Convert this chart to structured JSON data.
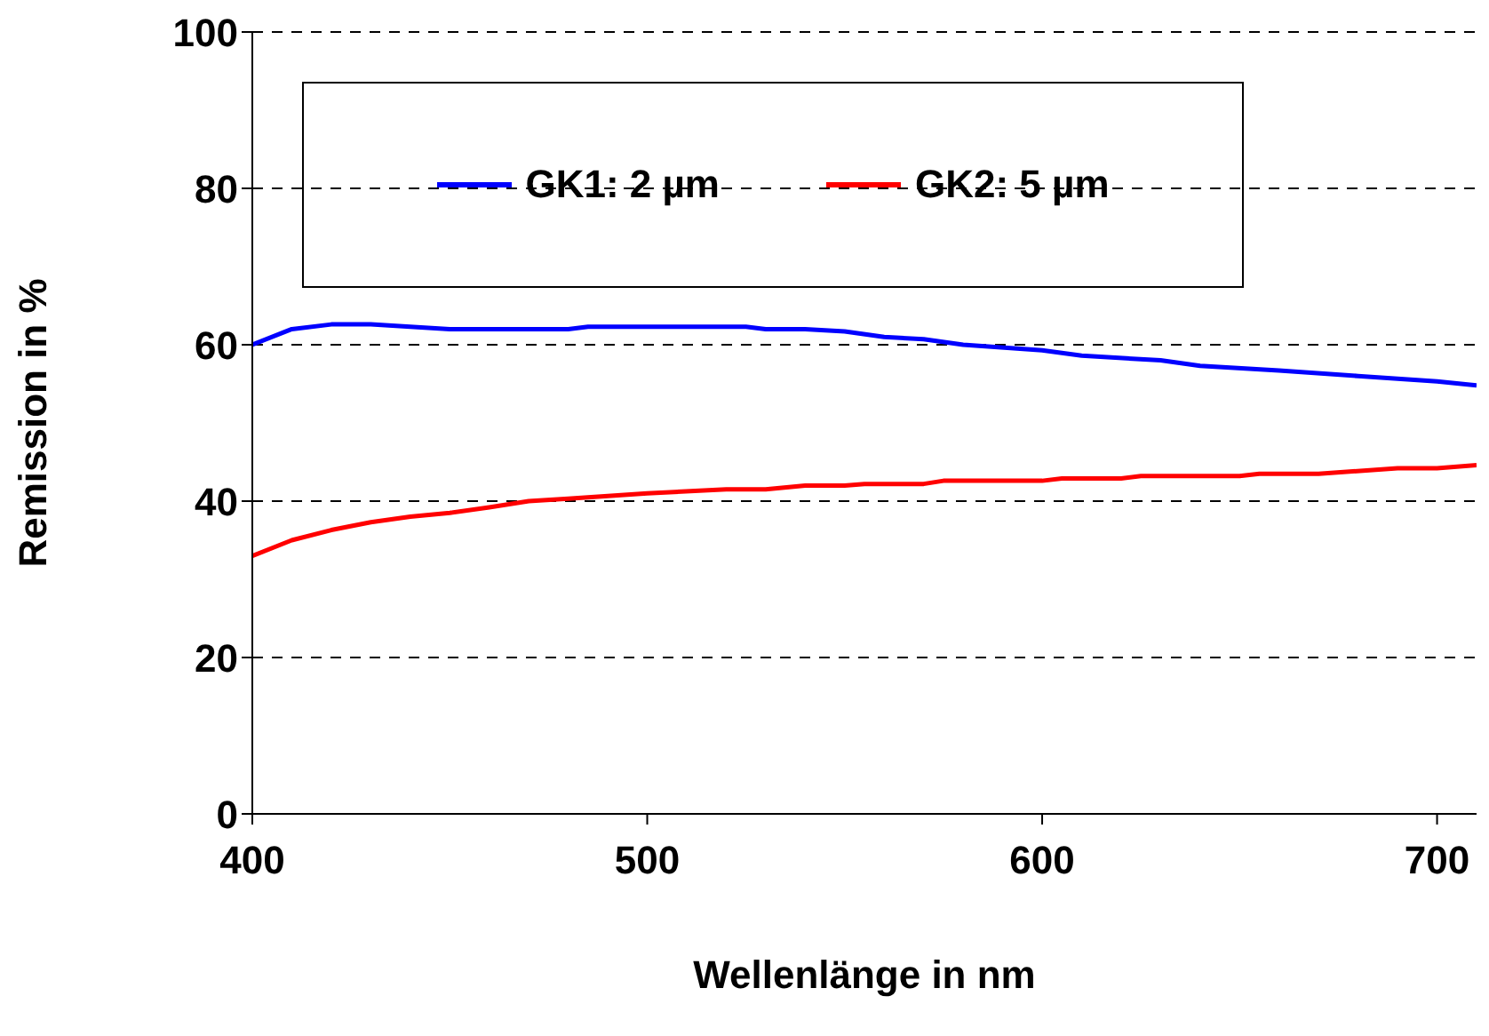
{
  "chart_data": {
    "type": "line",
    "xlabel": "Wellenlänge in nm",
    "ylabel": "Remission in %",
    "xlim": [
      400,
      710
    ],
    "xticks": [
      400,
      500,
      600,
      700
    ],
    "ylim": [
      0,
      100
    ],
    "yticks": [
      0,
      20,
      40,
      60,
      80,
      100
    ],
    "grid": "y",
    "legend": "top left",
    "marker": "none",
    "line_style": "solid",
    "series": [
      {
        "name": "GK1: 2 µm",
        "color": "#0000ff",
        "x": [
          400,
          410,
          420,
          430,
          450,
          480,
          485,
          525,
          530,
          540,
          550,
          560,
          570,
          580,
          600,
          610,
          630,
          640,
          660,
          680,
          700,
          710
        ],
        "values": [
          60,
          62,
          62.6,
          62.6,
          62,
          62,
          62.3,
          62.3,
          62,
          62,
          61.7,
          61,
          60.7,
          60,
          59.3,
          58.6,
          58,
          57.3,
          56.7,
          56,
          55.3,
          54.8
        ]
      },
      {
        "name": "GK2: 5 µm",
        "color": "#ff0000",
        "x": [
          400,
          410,
          420,
          430,
          440,
          450,
          460,
          470,
          480,
          500,
          520,
          530,
          540,
          550,
          555,
          570,
          575,
          600,
          605,
          620,
          625,
          650,
          655,
          670,
          690,
          700,
          710
        ],
        "values": [
          33,
          35,
          36.3,
          37.3,
          38,
          38.5,
          39.2,
          40,
          40.3,
          41,
          41.5,
          41.5,
          42,
          42,
          42.2,
          42.2,
          42.6,
          42.6,
          42.9,
          42.9,
          43.2,
          43.2,
          43.5,
          43.5,
          44.2,
          44.2,
          44.6
        ]
      }
    ]
  }
}
